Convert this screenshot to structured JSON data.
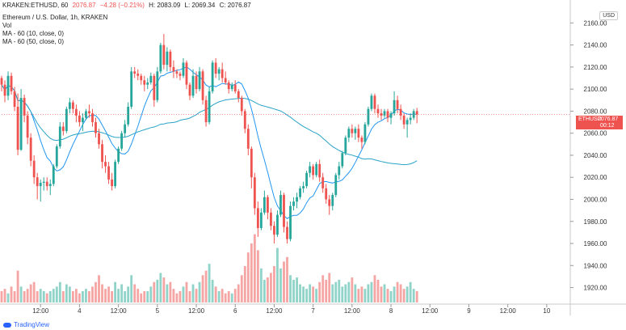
{
  "header": {
    "symbol_line": "KRAKEN:ETHUSD, 60",
    "close_value": "2076.87",
    "change": "−4.28 (−0.21%)",
    "high": "H: 2083.09",
    "low": "L: 2069.34",
    "close": "C: 2076.87"
  },
  "legend": {
    "title": "Ethereum / U.S. Dollar, 1h, KRAKEN",
    "vol": "Vol",
    "ma1": "MA - 60 (10, close, 0)",
    "ma2": "MA - 60 (50, close, 0)"
  },
  "currency_label": "USD",
  "price_tag": {
    "symbol": "ETHUSD",
    "price": "2076.87",
    "countdown": "00:12"
  },
  "brand": "TradingView",
  "colors": {
    "up": "#26a69a",
    "down": "#ef5350",
    "ma_fast": "#2196f3",
    "ma_slow": "#29a3c7",
    "volume_up": "#8fd3c9",
    "volume_down": "#f5a5a3"
  },
  "chart_data": {
    "type": "candlestick",
    "y_axis": {
      "ticks": [
        1920,
        1940,
        1960,
        1980,
        2000,
        2020,
        2040,
        2060,
        2080,
        2100,
        2120,
        2140,
        2160
      ],
      "range": [
        1905,
        2172
      ]
    },
    "x_axis": {
      "ticks": [
        "12:00",
        "4",
        "12:00",
        "5",
        "12:00",
        "6",
        "12:00",
        "7",
        "12:00",
        "8",
        "12:00",
        "9",
        "12:00",
        "10"
      ],
      "tick_positions": [
        12,
        24,
        36,
        48,
        60,
        72,
        84,
        96,
        108,
        120,
        132,
        144,
        156,
        168
      ],
      "range": [
        0,
        175
      ]
    },
    "last_price": 2076.87,
    "candles": [
      [
        2110,
        2112,
        2098,
        2104
      ],
      [
        2104,
        2108,
        2088,
        2094
      ],
      [
        2094,
        2116,
        2090,
        2112
      ],
      [
        2112,
        2115,
        2095,
        2098
      ],
      [
        2098,
        2102,
        2080,
        2084
      ],
      [
        2084,
        2096,
        2040,
        2045
      ],
      [
        2045,
        2100,
        2044,
        2092
      ],
      [
        2092,
        2095,
        2070,
        2076
      ],
      [
        2076,
        2080,
        2050,
        2056
      ],
      [
        2056,
        2060,
        2030,
        2035
      ],
      [
        2035,
        2040,
        2014,
        2020
      ],
      [
        2020,
        2024,
        2000,
        2012
      ],
      [
        2012,
        2018,
        1998,
        2015
      ],
      [
        2015,
        2020,
        2008,
        2016
      ],
      [
        2016,
        2020,
        2008,
        2012
      ],
      [
        2012,
        2018,
        2004,
        2014
      ],
      [
        2014,
        2032,
        2012,
        2030
      ],
      [
        2030,
        2050,
        2028,
        2048
      ],
      [
        2048,
        2070,
        2046,
        2066
      ],
      [
        2066,
        2070,
        2058,
        2062
      ],
      [
        2062,
        2084,
        2060,
        2082
      ],
      [
        2082,
        2092,
        2078,
        2088
      ],
      [
        2088,
        2090,
        2078,
        2082
      ],
      [
        2082,
        2086,
        2070,
        2076
      ],
      [
        2076,
        2080,
        2066,
        2070
      ],
      [
        2070,
        2078,
        2062,
        2074
      ],
      [
        2074,
        2082,
        2072,
        2080
      ],
      [
        2080,
        2086,
        2074,
        2078
      ],
      [
        2078,
        2082,
        2066,
        2070
      ],
      [
        2070,
        2074,
        2056,
        2060
      ],
      [
        2060,
        2064,
        2046,
        2050
      ],
      [
        2050,
        2054,
        2028,
        2034
      ],
      [
        2034,
        2040,
        2024,
        2030
      ],
      [
        2030,
        2034,
        2014,
        2018
      ],
      [
        2018,
        2024,
        2008,
        2012
      ],
      [
        2012,
        2036,
        2010,
        2034
      ],
      [
        2034,
        2048,
        2032,
        2046
      ],
      [
        2046,
        2062,
        2044,
        2060
      ],
      [
        2060,
        2072,
        2056,
        2068
      ],
      [
        2068,
        2088,
        2066,
        2084
      ],
      [
        2084,
        2120,
        2082,
        2116
      ],
      [
        2116,
        2120,
        2110,
        2114
      ],
      [
        2114,
        2118,
        2108,
        2112
      ],
      [
        2112,
        2114,
        2104,
        2108
      ],
      [
        2108,
        2112,
        2098,
        2104
      ],
      [
        2104,
        2110,
        2100,
        2106
      ],
      [
        2106,
        2115,
        2104,
        2112
      ],
      [
        2112,
        2114,
        2084,
        2090
      ],
      [
        2090,
        2120,
        2088,
        2116
      ],
      [
        2116,
        2142,
        2114,
        2140
      ],
      [
        2140,
        2150,
        2118,
        2122
      ],
      [
        2122,
        2138,
        2116,
        2134
      ],
      [
        2134,
        2136,
        2116,
        2120
      ],
      [
        2120,
        2126,
        2110,
        2116
      ],
      [
        2116,
        2118,
        2110,
        2114
      ],
      [
        2114,
        2116,
        2108,
        2112
      ],
      [
        2112,
        2128,
        2110,
        2124
      ],
      [
        2124,
        2126,
        2100,
        2104
      ],
      [
        2104,
        2106,
        2090,
        2094
      ],
      [
        2094,
        2118,
        2092,
        2112
      ],
      [
        2112,
        2116,
        2096,
        2100
      ],
      [
        2100,
        2120,
        2098,
        2116
      ],
      [
        2116,
        2118,
        2086,
        2090
      ],
      [
        2090,
        2094,
        2066,
        2070
      ],
      [
        2070,
        2102,
        2068,
        2098
      ],
      [
        2098,
        2126,
        2096,
        2124
      ],
      [
        2124,
        2128,
        2110,
        2114
      ],
      [
        2114,
        2120,
        2108,
        2118
      ],
      [
        2118,
        2124,
        2106,
        2110
      ],
      [
        2110,
        2116,
        2104,
        2106
      ],
      [
        2106,
        2108,
        2096,
        2100
      ],
      [
        2100,
        2106,
        2098,
        2104
      ],
      [
        2104,
        2108,
        2096,
        2098
      ],
      [
        2098,
        2100,
        2088,
        2092
      ],
      [
        2092,
        2094,
        2076,
        2080
      ],
      [
        2080,
        2082,
        2060,
        2064
      ],
      [
        2064,
        2068,
        2040,
        2046
      ],
      [
        2046,
        2048,
        2010,
        2020
      ],
      [
        2020,
        2024,
        1986,
        1992
      ],
      [
        1992,
        1998,
        1966,
        1974
      ],
      [
        1974,
        1992,
        1972,
        1988
      ],
      [
        1988,
        2008,
        1986,
        2002
      ],
      [
        2002,
        2004,
        1982,
        1988
      ],
      [
        1988,
        1992,
        1972,
        1976
      ],
      [
        1976,
        1980,
        1960,
        1968
      ],
      [
        1968,
        1990,
        1966,
        1986
      ],
      [
        1986,
        2008,
        1984,
        2004
      ],
      [
        2004,
        2006,
        1970,
        1975
      ],
      [
        1975,
        1980,
        1960,
        1964
      ],
      [
        1964,
        1998,
        1962,
        1994
      ],
      [
        1994,
        2002,
        1990,
        1998
      ],
      [
        1998,
        2006,
        1992,
        2002
      ],
      [
        2002,
        2012,
        2000,
        2010
      ],
      [
        2010,
        2016,
        2006,
        2012
      ],
      [
        2012,
        2026,
        2010,
        2024
      ],
      [
        2024,
        2034,
        2020,
        2030
      ],
      [
        2030,
        2032,
        2018,
        2022
      ],
      [
        2022,
        2034,
        2020,
        2032
      ],
      [
        2032,
        2036,
        2016,
        2020
      ],
      [
        2020,
        2024,
        2006,
        2010
      ],
      [
        2010,
        2014,
        1996,
        2000
      ],
      [
        2000,
        2004,
        1986,
        1994
      ],
      [
        1994,
        2006,
        1990,
        2004
      ],
      [
        2004,
        2024,
        2002,
        2022
      ],
      [
        2022,
        2034,
        2018,
        2030
      ],
      [
        2030,
        2044,
        2028,
        2042
      ],
      [
        2042,
        2058,
        2040,
        2056
      ],
      [
        2056,
        2066,
        2052,
        2064
      ],
      [
        2064,
        2068,
        2056,
        2060
      ],
      [
        2060,
        2066,
        2054,
        2064
      ],
      [
        2064,
        2068,
        2052,
        2056
      ],
      [
        2056,
        2058,
        2046,
        2052
      ],
      [
        2052,
        2070,
        2050,
        2068
      ],
      [
        2068,
        2084,
        2066,
        2082
      ],
      [
        2082,
        2096,
        2080,
        2094
      ],
      [
        2094,
        2096,
        2078,
        2082
      ],
      [
        2082,
        2086,
        2074,
        2078
      ],
      [
        2078,
        2082,
        2072,
        2076
      ],
      [
        2076,
        2082,
        2074,
        2080
      ],
      [
        2080,
        2082,
        2070,
        2074
      ],
      [
        2074,
        2080,
        2068,
        2078
      ],
      [
        2078,
        2098,
        2076,
        2090
      ],
      [
        2090,
        2094,
        2078,
        2082
      ],
      [
        2082,
        2086,
        2072,
        2076
      ],
      [
        2076,
        2078,
        2064,
        2068
      ],
      [
        2068,
        2074,
        2056,
        2072
      ],
      [
        2072,
        2078,
        2068,
        2074
      ],
      [
        2074,
        2082,
        2072,
        2080
      ],
      [
        2080,
        2083,
        2069,
        2077
      ]
    ],
    "volumes": [
      5,
      6,
      4,
      7,
      5,
      14,
      7,
      5,
      6,
      8,
      9,
      5,
      6,
      5,
      4,
      5,
      6,
      7,
      9,
      5,
      8,
      7,
      5,
      6,
      4,
      5,
      6,
      5,
      7,
      9,
      12,
      8,
      6,
      7,
      5,
      9,
      6,
      8,
      5,
      7,
      12,
      8,
      6,
      4,
      5,
      5,
      7,
      9,
      10,
      13,
      11,
      8,
      9,
      6,
      4,
      5,
      7,
      9,
      5,
      8,
      6,
      9,
      12,
      14,
      17,
      10,
      7,
      5,
      6,
      4,
      5,
      4,
      6,
      8,
      12,
      16,
      22,
      26,
      30,
      23,
      15,
      10,
      11,
      13,
      16,
      24,
      15,
      18,
      20,
      12,
      10,
      11,
      8,
      7,
      6,
      8,
      7,
      6,
      9,
      12,
      10,
      13,
      8,
      9,
      10,
      7,
      8,
      9,
      11,
      8,
      6,
      7,
      6,
      8,
      9,
      12,
      10,
      7,
      8,
      6,
      5,
      7,
      9,
      8,
      6,
      7,
      9,
      6,
      5
    ],
    "volume_scale_max": 32
  }
}
